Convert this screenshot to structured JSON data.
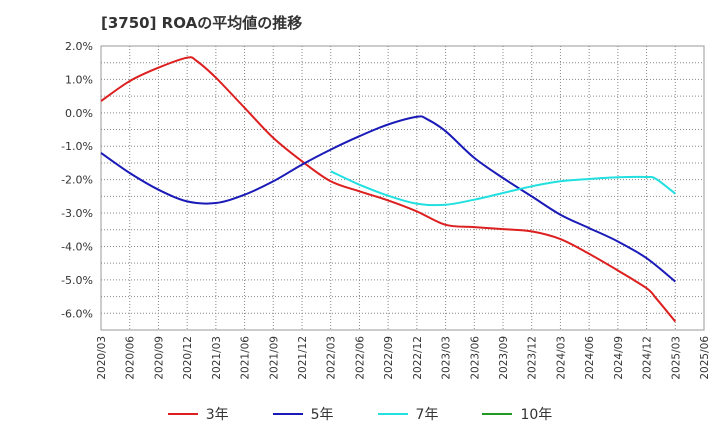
{
  "title": "[3750]  ROAの平均値の推移",
  "chart_data": {
    "type": "line",
    "title": "[3750]  ROAの平均値の推移",
    "xlabel": "",
    "ylabel": "",
    "ylim": [
      -6.5,
      2.0
    ],
    "yticks": [
      2.0,
      1.0,
      0.0,
      -1.0,
      -2.0,
      -3.0,
      -4.0,
      -5.0,
      -6.0
    ],
    "ytick_labels": [
      "2.0%",
      "1.0%",
      "0.0%",
      "-1.0%",
      "-2.0%",
      "-3.0%",
      "-4.0%",
      "-5.0%",
      "-6.0%"
    ],
    "x_categories": [
      "2020/03",
      "2020/06",
      "2020/09",
      "2020/12",
      "2021/03",
      "2021/06",
      "2021/09",
      "2021/12",
      "2022/03",
      "2022/06",
      "2022/09",
      "2022/12",
      "2023/03",
      "2023/06",
      "2023/09",
      "2023/12",
      "2024/03",
      "2024/06",
      "2024/09",
      "2024/12",
      "2025/03",
      "2025/06"
    ],
    "grid": true,
    "legend_position": "bottom",
    "series": [
      {
        "name": "3年",
        "color": "#dd1f1f",
        "x": [
          "2020/03",
          "2020/06",
          "2020/09",
          "2020/12",
          "2021/01",
          "2021/03",
          "2021/06",
          "2021/09",
          "2021/12",
          "2022/03",
          "2022/06",
          "2022/09",
          "2022/12",
          "2023/03",
          "2023/06",
          "2023/09",
          "2023/12",
          "2024/03",
          "2024/06",
          "2024/09",
          "2024/12",
          "2025/01",
          "2025/03"
        ],
        "values": [
          0.35,
          0.95,
          1.35,
          1.65,
          1.55,
          1.05,
          0.15,
          -0.75,
          -1.45,
          -2.05,
          -2.35,
          -2.62,
          -2.95,
          -3.35,
          -3.42,
          -3.48,
          -3.55,
          -3.78,
          -4.22,
          -4.72,
          -5.25,
          -5.55,
          -6.25
        ]
      },
      {
        "name": "5年",
        "color": "#1a1ab8",
        "x": [
          "2020/03",
          "2020/06",
          "2020/09",
          "2020/12",
          "2021/03",
          "2021/06",
          "2021/09",
          "2021/12",
          "2022/03",
          "2022/06",
          "2022/09",
          "2022/12",
          "2023/01",
          "2023/03",
          "2023/06",
          "2023/09",
          "2023/12",
          "2024/03",
          "2024/06",
          "2024/09",
          "2024/12",
          "2025/03"
        ],
        "values": [
          -1.2,
          -1.8,
          -2.3,
          -2.65,
          -2.7,
          -2.45,
          -2.05,
          -1.55,
          -1.1,
          -0.7,
          -0.35,
          -0.12,
          -0.18,
          -0.55,
          -1.35,
          -1.95,
          -2.5,
          -3.05,
          -3.45,
          -3.85,
          -4.35,
          -5.05
        ]
      },
      {
        "name": "7年",
        "color": "#22e0e0",
        "x": [
          "2022/03",
          "2022/06",
          "2022/09",
          "2022/12",
          "2023/03",
          "2023/06",
          "2023/09",
          "2023/12",
          "2024/03",
          "2024/06",
          "2024/09",
          "2024/12",
          "2025/01",
          "2025/03"
        ],
        "values": [
          -1.75,
          -2.15,
          -2.48,
          -2.72,
          -2.75,
          -2.6,
          -2.4,
          -2.2,
          -2.05,
          -1.98,
          -1.93,
          -1.92,
          -1.98,
          -2.42
        ]
      },
      {
        "name": "10年",
        "color": "#229922",
        "x": [],
        "values": []
      }
    ]
  }
}
